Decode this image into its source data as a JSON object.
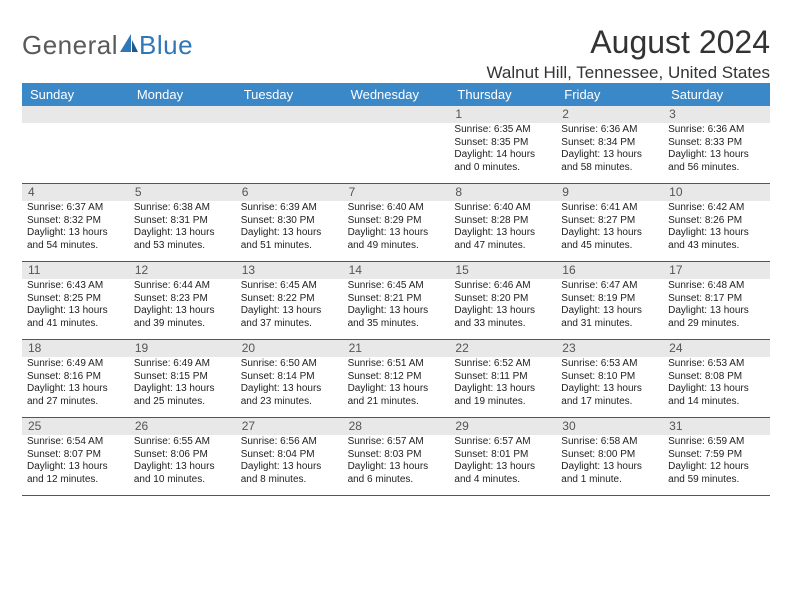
{
  "logo": {
    "text1": "General",
    "text2": "Blue"
  },
  "title": "August 2024",
  "location": "Walnut Hill, Tennessee, United States",
  "colors": {
    "header_bg": "#3b88c8",
    "header_fg": "#ffffff",
    "daybar_bg": "#e8e8e8",
    "rule": "#2f5f86",
    "logo_gray": "#5a5a5a",
    "logo_blue": "#2f77b8"
  },
  "daysOfWeek": [
    "Sunday",
    "Monday",
    "Tuesday",
    "Wednesday",
    "Thursday",
    "Friday",
    "Saturday"
  ],
  "weeks": [
    [
      null,
      null,
      null,
      null,
      {
        "n": "1",
        "sunrise": "6:35 AM",
        "sunset": "8:35 PM",
        "daylight": "14 hours and 0 minutes."
      },
      {
        "n": "2",
        "sunrise": "6:36 AM",
        "sunset": "8:34 PM",
        "daylight": "13 hours and 58 minutes."
      },
      {
        "n": "3",
        "sunrise": "6:36 AM",
        "sunset": "8:33 PM",
        "daylight": "13 hours and 56 minutes."
      }
    ],
    [
      {
        "n": "4",
        "sunrise": "6:37 AM",
        "sunset": "8:32 PM",
        "daylight": "13 hours and 54 minutes."
      },
      {
        "n": "5",
        "sunrise": "6:38 AM",
        "sunset": "8:31 PM",
        "daylight": "13 hours and 53 minutes."
      },
      {
        "n": "6",
        "sunrise": "6:39 AM",
        "sunset": "8:30 PM",
        "daylight": "13 hours and 51 minutes."
      },
      {
        "n": "7",
        "sunrise": "6:40 AM",
        "sunset": "8:29 PM",
        "daylight": "13 hours and 49 minutes."
      },
      {
        "n": "8",
        "sunrise": "6:40 AM",
        "sunset": "8:28 PM",
        "daylight": "13 hours and 47 minutes."
      },
      {
        "n": "9",
        "sunrise": "6:41 AM",
        "sunset": "8:27 PM",
        "daylight": "13 hours and 45 minutes."
      },
      {
        "n": "10",
        "sunrise": "6:42 AM",
        "sunset": "8:26 PM",
        "daylight": "13 hours and 43 minutes."
      }
    ],
    [
      {
        "n": "11",
        "sunrise": "6:43 AM",
        "sunset": "8:25 PM",
        "daylight": "13 hours and 41 minutes."
      },
      {
        "n": "12",
        "sunrise": "6:44 AM",
        "sunset": "8:23 PM",
        "daylight": "13 hours and 39 minutes."
      },
      {
        "n": "13",
        "sunrise": "6:45 AM",
        "sunset": "8:22 PM",
        "daylight": "13 hours and 37 minutes."
      },
      {
        "n": "14",
        "sunrise": "6:45 AM",
        "sunset": "8:21 PM",
        "daylight": "13 hours and 35 minutes."
      },
      {
        "n": "15",
        "sunrise": "6:46 AM",
        "sunset": "8:20 PM",
        "daylight": "13 hours and 33 minutes."
      },
      {
        "n": "16",
        "sunrise": "6:47 AM",
        "sunset": "8:19 PM",
        "daylight": "13 hours and 31 minutes."
      },
      {
        "n": "17",
        "sunrise": "6:48 AM",
        "sunset": "8:17 PM",
        "daylight": "13 hours and 29 minutes."
      }
    ],
    [
      {
        "n": "18",
        "sunrise": "6:49 AM",
        "sunset": "8:16 PM",
        "daylight": "13 hours and 27 minutes."
      },
      {
        "n": "19",
        "sunrise": "6:49 AM",
        "sunset": "8:15 PM",
        "daylight": "13 hours and 25 minutes."
      },
      {
        "n": "20",
        "sunrise": "6:50 AM",
        "sunset": "8:14 PM",
        "daylight": "13 hours and 23 minutes."
      },
      {
        "n": "21",
        "sunrise": "6:51 AM",
        "sunset": "8:12 PM",
        "daylight": "13 hours and 21 minutes."
      },
      {
        "n": "22",
        "sunrise": "6:52 AM",
        "sunset": "8:11 PM",
        "daylight": "13 hours and 19 minutes."
      },
      {
        "n": "23",
        "sunrise": "6:53 AM",
        "sunset": "8:10 PM",
        "daylight": "13 hours and 17 minutes."
      },
      {
        "n": "24",
        "sunrise": "6:53 AM",
        "sunset": "8:08 PM",
        "daylight": "13 hours and 14 minutes."
      }
    ],
    [
      {
        "n": "25",
        "sunrise": "6:54 AM",
        "sunset": "8:07 PM",
        "daylight": "13 hours and 12 minutes."
      },
      {
        "n": "26",
        "sunrise": "6:55 AM",
        "sunset": "8:06 PM",
        "daylight": "13 hours and 10 minutes."
      },
      {
        "n": "27",
        "sunrise": "6:56 AM",
        "sunset": "8:04 PM",
        "daylight": "13 hours and 8 minutes."
      },
      {
        "n": "28",
        "sunrise": "6:57 AM",
        "sunset": "8:03 PM",
        "daylight": "13 hours and 6 minutes."
      },
      {
        "n": "29",
        "sunrise": "6:57 AM",
        "sunset": "8:01 PM",
        "daylight": "13 hours and 4 minutes."
      },
      {
        "n": "30",
        "sunrise": "6:58 AM",
        "sunset": "8:00 PM",
        "daylight": "13 hours and 1 minute."
      },
      {
        "n": "31",
        "sunrise": "6:59 AM",
        "sunset": "7:59 PM",
        "daylight": "12 hours and 59 minutes."
      }
    ]
  ],
  "labels": {
    "sunrise_prefix": "Sunrise: ",
    "sunset_prefix": "Sunset: ",
    "daylight_prefix": "Daylight: "
  }
}
